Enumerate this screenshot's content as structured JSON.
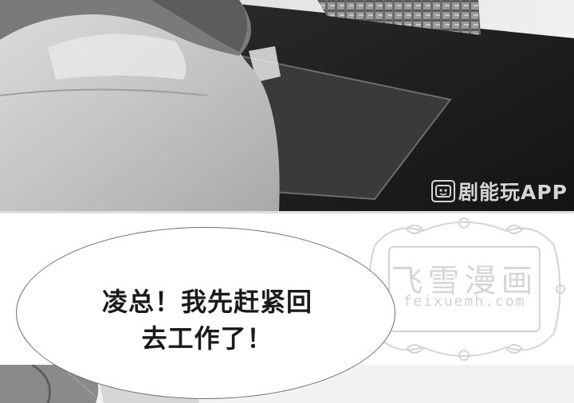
{
  "speech": {
    "line1": "凌总！我先赶紧回",
    "line2": "去工作了！"
  },
  "watermark_app": {
    "text": "剧能玩APP",
    "icon": "film-reel-icon"
  },
  "watermark_site": {
    "title": "飞雪漫画",
    "url": "feixuemh.com"
  },
  "colors": {
    "bubble_border": "#6e6e6e",
    "text": "#1a1a1a",
    "stamp": "#d2d2d2",
    "desk": "#1f1f1f"
  }
}
